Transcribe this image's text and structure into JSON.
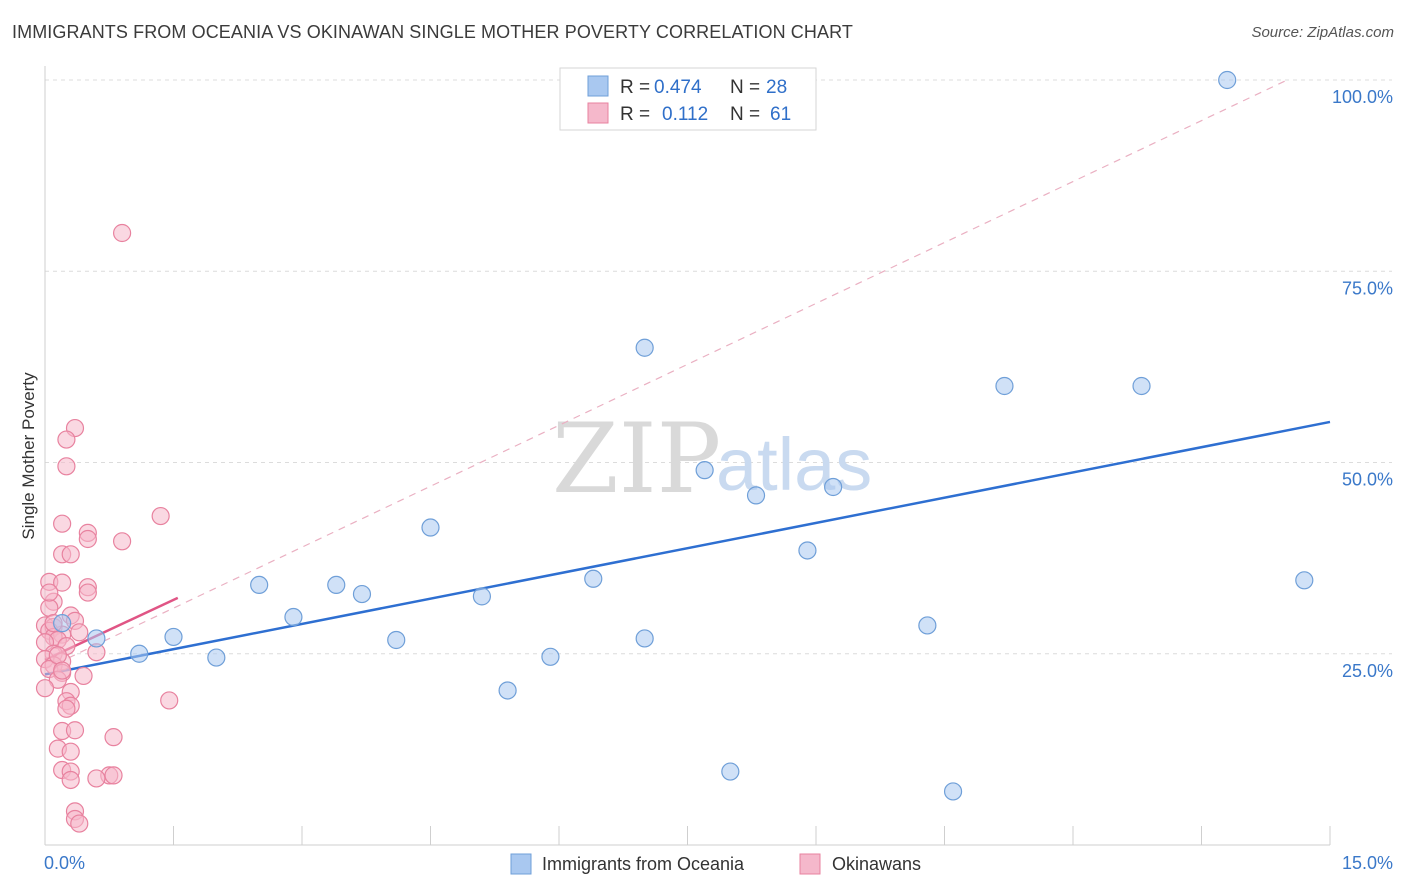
{
  "header": {
    "title": "IMMIGRANTS FROM OCEANIA VS OKINAWAN SINGLE MOTHER POVERTY CORRELATION CHART",
    "source": "Source: ZipAtlas.com"
  },
  "watermark": {
    "zip": "ZIP",
    "atlas": "atlas"
  },
  "legend_box": {
    "rows": [
      {
        "r_label": "R =",
        "r_value": "0.474",
        "n_label": "N =",
        "n_value": "28",
        "color": "#a9c8f0"
      },
      {
        "r_label": "R =",
        "r_value": "0.112",
        "n_label": "N =",
        "n_value": "61",
        "color": "#f5b8cb"
      }
    ]
  },
  "bottom_legend": {
    "items": [
      {
        "label": "Immigrants from Oceania",
        "color": "#a9c8f0"
      },
      {
        "label": "Okinawans",
        "color": "#f5b8cb"
      }
    ]
  },
  "chart_data": {
    "type": "scatter",
    "title": "IMMIGRANTS FROM OCEANIA VS OKINAWAN SINGLE MOTHER POVERTY CORRELATION CHART",
    "xlabel": "",
    "ylabel": "Single Mother Poverty",
    "xlim": [
      0,
      15
    ],
    "ylim": [
      0,
      100
    ],
    "x_tick_labels": [
      "0.0%",
      "15.0%"
    ],
    "y_ticks": [
      25,
      50,
      75,
      100
    ],
    "y_tick_labels": [
      "25.0%",
      "50.0%",
      "75.0%",
      "100.0%"
    ],
    "grid": true,
    "legend_placement": "top-center",
    "series": [
      {
        "name": "Immigrants from Oceania",
        "color": "#a9c8f0",
        "stroke": "#6f9fd8",
        "line_color": "#2e6fd1",
        "r": 0.474,
        "n": 28,
        "trend": {
          "x": [
            0,
            15
          ],
          "y": [
            22.3,
            55.3
          ]
        },
        "points": [
          [
            0.6,
            27.0
          ],
          [
            1.1,
            25.0
          ],
          [
            1.5,
            27.2
          ],
          [
            2.0,
            24.5
          ],
          [
            2.5,
            34.0
          ],
          [
            2.9,
            29.8
          ],
          [
            3.4,
            34.0
          ],
          [
            3.7,
            32.8
          ],
          [
            4.1,
            26.8
          ],
          [
            4.5,
            41.5
          ],
          [
            5.1,
            32.5
          ],
          [
            5.4,
            20.2
          ],
          [
            5.9,
            24.6
          ],
          [
            6.4,
            34.8
          ],
          [
            7.0,
            65.0
          ],
          [
            7.0,
            27.0
          ],
          [
            7.7,
            49.0
          ],
          [
            8.0,
            9.6
          ],
          [
            8.3,
            45.7
          ],
          [
            8.9,
            38.5
          ],
          [
            9.2,
            46.8
          ],
          [
            10.3,
            28.7
          ],
          [
            10.6,
            7.0
          ],
          [
            11.2,
            60.0
          ],
          [
            12.8,
            60.0
          ],
          [
            13.8,
            100.0
          ],
          [
            14.7,
            34.6
          ],
          [
            0.2,
            29.0
          ]
        ]
      },
      {
        "name": "Okinawans",
        "color": "#f5b8cb",
        "stroke": "#e8829f",
        "line_color": "#e05585",
        "r": 0.112,
        "n": 61,
        "trend": {
          "x": [
            0,
            1.55
          ],
          "y": [
            24.2,
            32.3
          ]
        },
        "trend_extended": {
          "x": [
            0,
            14.5
          ],
          "y": [
            23.0,
            100.0
          ]
        },
        "points": [
          [
            0.9,
            80.0
          ],
          [
            0.35,
            54.5
          ],
          [
            0.25,
            53.0
          ],
          [
            0.25,
            49.5
          ],
          [
            0.2,
            42.0
          ],
          [
            1.35,
            43.0
          ],
          [
            0.5,
            40.8
          ],
          [
            0.5,
            40.0
          ],
          [
            0.9,
            39.7
          ],
          [
            0.2,
            38.0
          ],
          [
            0.3,
            38.0
          ],
          [
            0.05,
            34.4
          ],
          [
            0.2,
            34.3
          ],
          [
            0.5,
            33.7
          ],
          [
            0.5,
            33.0
          ],
          [
            0.1,
            31.8
          ],
          [
            0.05,
            31.0
          ],
          [
            0.3,
            30.0
          ],
          [
            0.35,
            29.3
          ],
          [
            0.0,
            28.7
          ],
          [
            0.1,
            28.5
          ],
          [
            0.05,
            28.0
          ],
          [
            0.2,
            27.5
          ],
          [
            0.1,
            27.2
          ],
          [
            0.15,
            26.8
          ],
          [
            0.0,
            26.5
          ],
          [
            0.25,
            26.0
          ],
          [
            0.6,
            25.2
          ],
          [
            0.1,
            25.0
          ],
          [
            0.0,
            24.3
          ],
          [
            0.2,
            24.0
          ],
          [
            0.1,
            23.5
          ],
          [
            0.05,
            23.0
          ],
          [
            0.2,
            22.5
          ],
          [
            0.45,
            22.1
          ],
          [
            0.15,
            21.6
          ],
          [
            0.0,
            20.5
          ],
          [
            0.3,
            20.0
          ],
          [
            1.45,
            18.9
          ],
          [
            0.25,
            18.8
          ],
          [
            0.3,
            18.2
          ],
          [
            0.25,
            17.8
          ],
          [
            0.2,
            14.9
          ],
          [
            0.35,
            15.0
          ],
          [
            0.8,
            14.1
          ],
          [
            0.15,
            12.6
          ],
          [
            0.3,
            12.2
          ],
          [
            0.2,
            9.8
          ],
          [
            0.3,
            9.6
          ],
          [
            0.75,
            9.1
          ],
          [
            0.8,
            9.1
          ],
          [
            0.6,
            8.7
          ],
          [
            0.3,
            8.5
          ],
          [
            0.35,
            4.4
          ],
          [
            0.35,
            3.4
          ],
          [
            0.4,
            2.8
          ],
          [
            0.1,
            29.0
          ],
          [
            0.15,
            24.8
          ],
          [
            0.05,
            33.0
          ],
          [
            0.4,
            27.8
          ],
          [
            0.2,
            22.8
          ]
        ]
      }
    ]
  }
}
